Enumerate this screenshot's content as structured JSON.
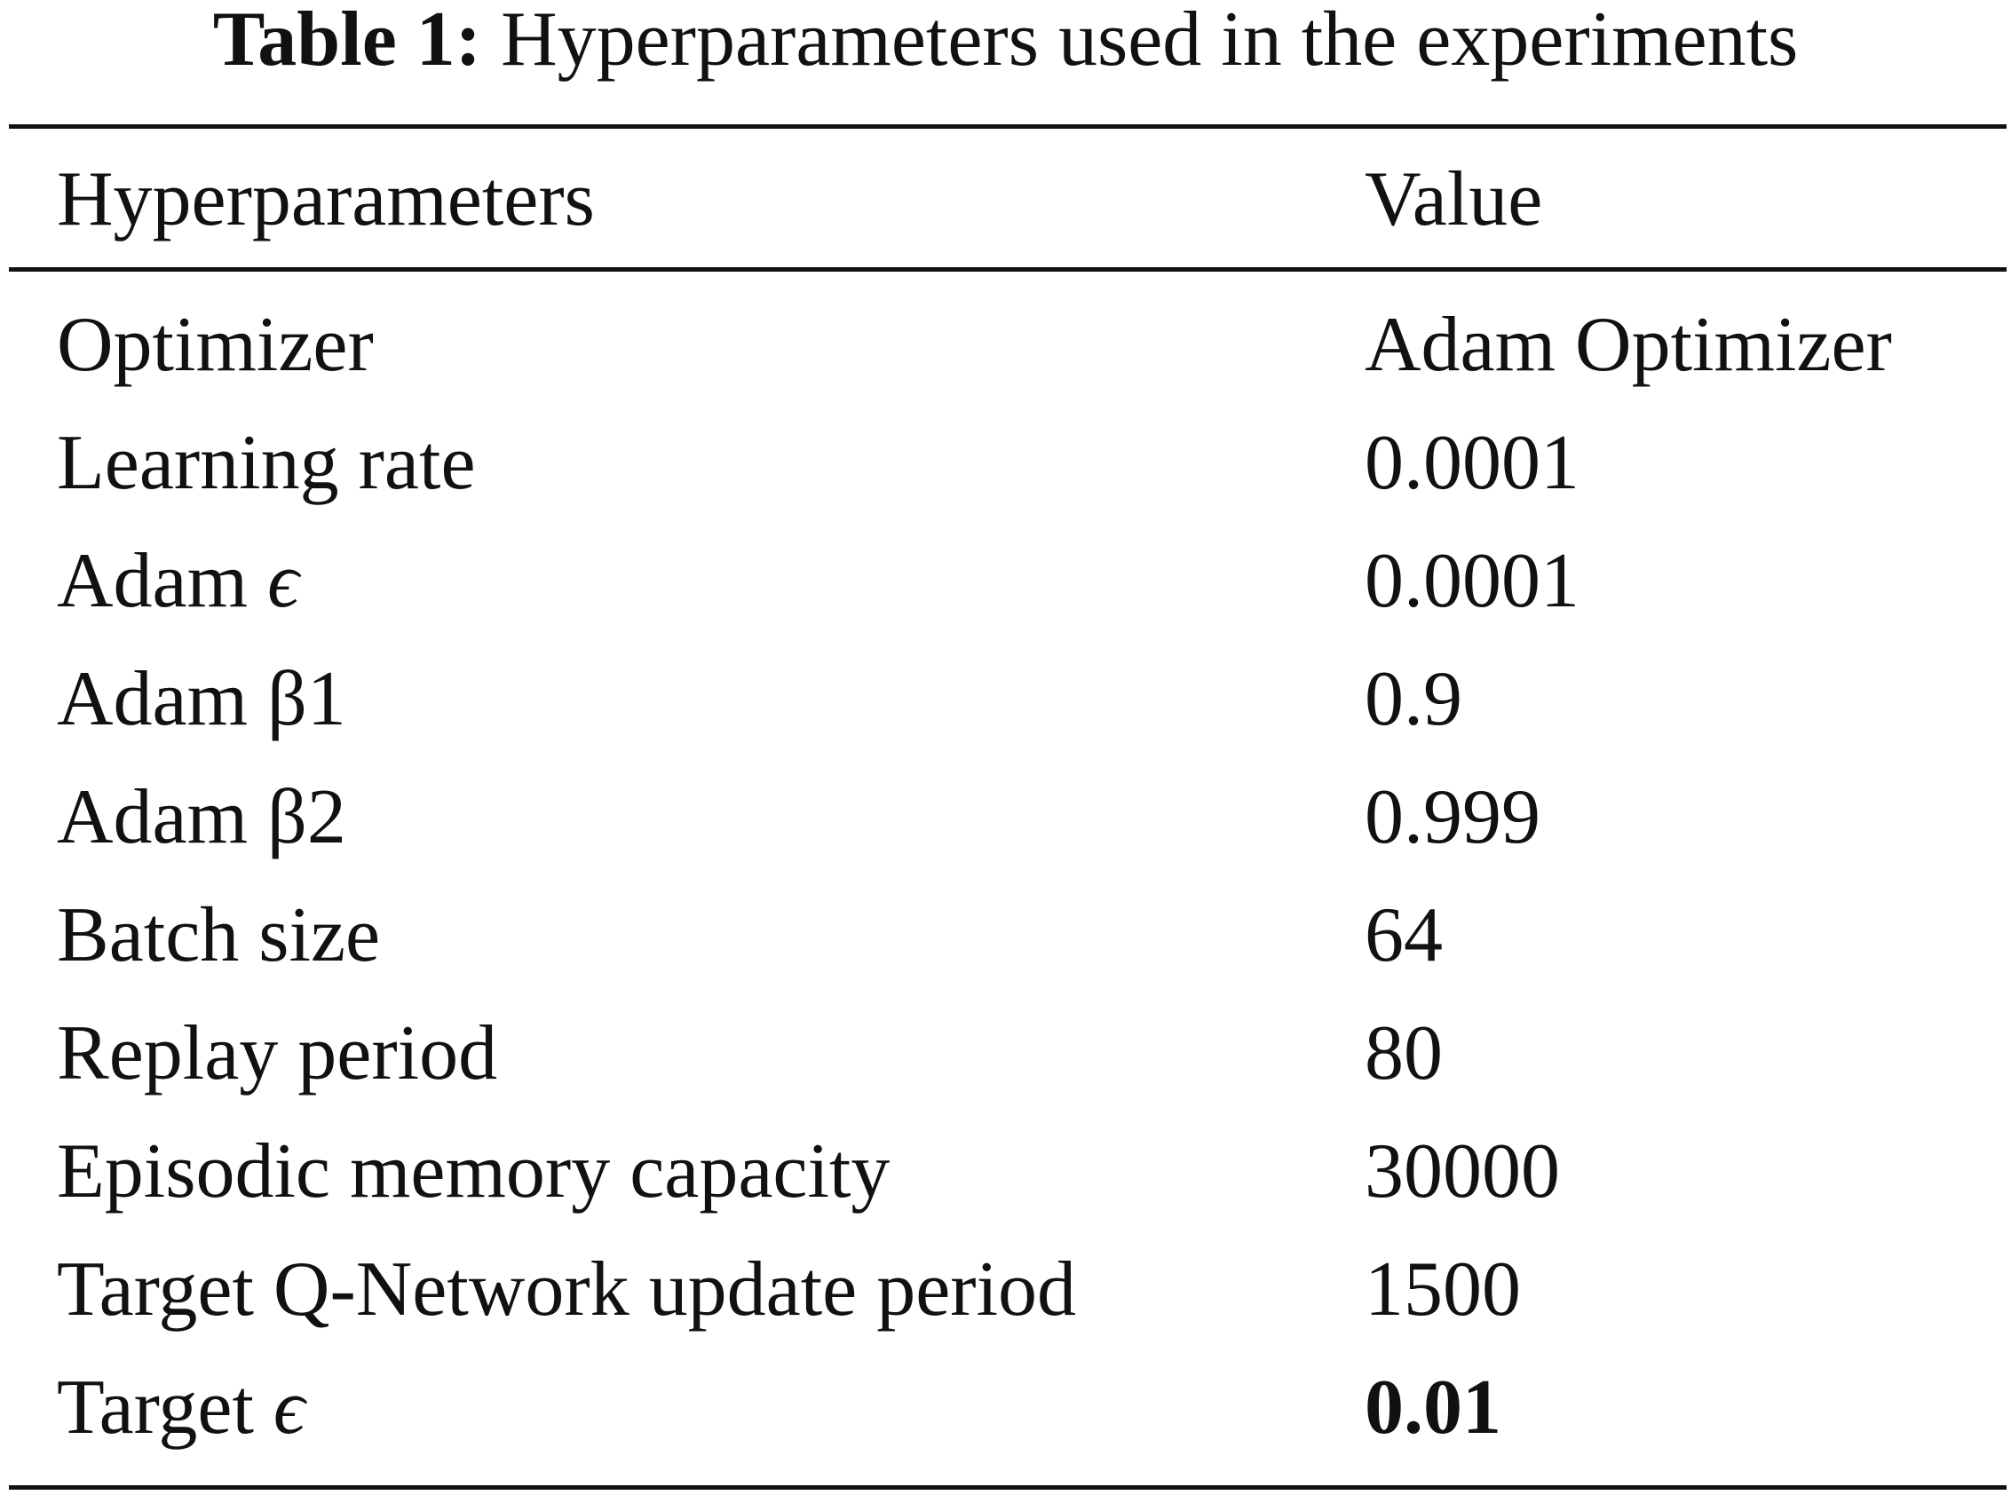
{
  "caption": {
    "label": "Table 1:",
    "text": "Hyperparameters used in the experiments"
  },
  "header": {
    "param": "Hyperparameters",
    "value": "Value"
  },
  "rows": [
    {
      "param": "Optimizer",
      "value": "Adam Optimizer"
    },
    {
      "param": "Learning rate",
      "value": "0.0001"
    },
    {
      "param_prefix": "Adam",
      "param_symbol": "ϵ",
      "value": "0.0001"
    },
    {
      "param": "Adam β1",
      "value": "0.9"
    },
    {
      "param": "Adam β2",
      "value": "0.999"
    },
    {
      "param": "Batch size",
      "value": "64"
    },
    {
      "param": "Replay period",
      "value": "80"
    },
    {
      "param": "Episodic memory capacity",
      "value": "30000"
    },
    {
      "param": "Target Q-Network update period",
      "value": "1500"
    },
    {
      "param_prefix": "Target",
      "param_symbol": "ϵ",
      "value": "0.01",
      "value_bold": true
    }
  ]
}
